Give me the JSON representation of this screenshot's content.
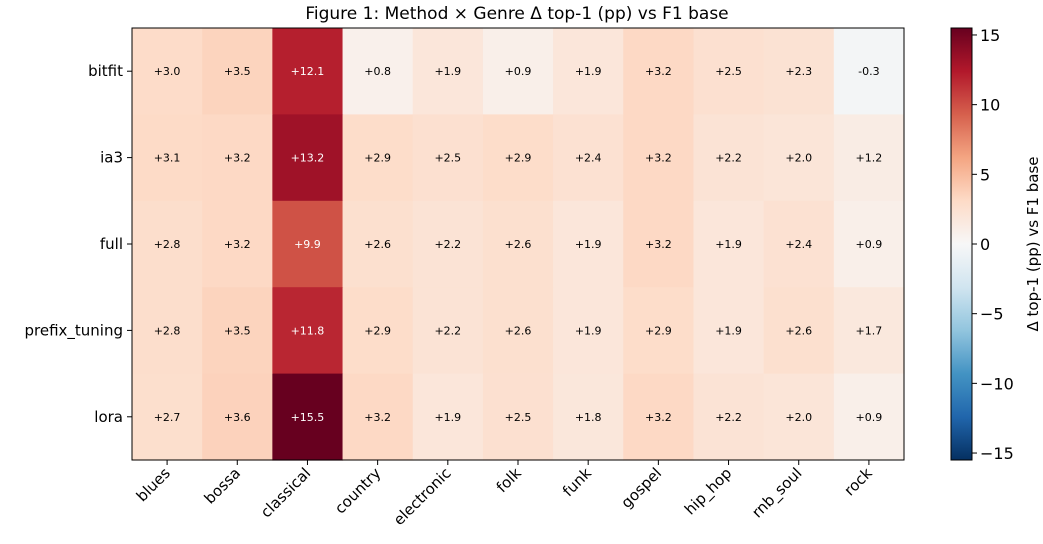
{
  "chart_data": {
    "type": "heatmap",
    "title": "Figure 1: Method × Genre Δ top-1 (pp) vs F1 base",
    "rows": [
      "bitfit",
      "ia3",
      "full",
      "prefix_tuning",
      "lora"
    ],
    "columns": [
      "blues",
      "bossa",
      "classical",
      "country",
      "electronic",
      "folk",
      "funk",
      "gospel",
      "hip_hop",
      "rnb_soul",
      "rock"
    ],
    "values": [
      [
        3.0,
        3.5,
        12.1,
        0.8,
        1.9,
        0.9,
        1.9,
        3.2,
        2.5,
        2.3,
        -0.3
      ],
      [
        3.1,
        3.2,
        13.2,
        2.9,
        2.5,
        2.9,
        2.4,
        3.2,
        2.2,
        2.0,
        1.2
      ],
      [
        2.8,
        3.2,
        9.9,
        2.6,
        2.2,
        2.6,
        1.9,
        3.2,
        1.9,
        2.4,
        0.9
      ],
      [
        2.8,
        3.5,
        11.8,
        2.9,
        2.2,
        2.6,
        1.9,
        2.9,
        1.9,
        2.6,
        1.7
      ],
      [
        2.7,
        3.6,
        15.5,
        3.2,
        1.9,
        2.5,
        1.8,
        3.2,
        2.2,
        2.0,
        0.9
      ]
    ],
    "cell_labels": [
      [
        "+3.0",
        "+3.5",
        "+12.1",
        "+0.8",
        "+1.9",
        "+0.9",
        "+1.9",
        "+3.2",
        "+2.5",
        "+2.3",
        "-0.3"
      ],
      [
        "+3.1",
        "+3.2",
        "+13.2",
        "+2.9",
        "+2.5",
        "+2.9",
        "+2.4",
        "+3.2",
        "+2.2",
        "+2.0",
        "+1.2"
      ],
      [
        "+2.8",
        "+3.2",
        "+9.9",
        "+2.6",
        "+2.2",
        "+2.6",
        "+1.9",
        "+3.2",
        "+1.9",
        "+2.4",
        "+0.9"
      ],
      [
        "+2.8",
        "+3.5",
        "+11.8",
        "+2.9",
        "+2.2",
        "+2.6",
        "+1.9",
        "+2.9",
        "+1.9",
        "+2.6",
        "+1.7"
      ],
      [
        "+2.7",
        "+3.6",
        "+15.5",
        "+3.2",
        "+1.9",
        "+2.5",
        "+1.8",
        "+3.2",
        "+2.2",
        "+2.0",
        "+0.9"
      ]
    ],
    "colormap": "RdBu_r",
    "vmin": -15.5,
    "vmax": 15.5,
    "colorbar": {
      "label": "Δ top-1 (pp) vs F1 base",
      "ticks": [
        15,
        10,
        5,
        0,
        -5,
        -10,
        -15
      ],
      "tick_labels": [
        "15",
        "10",
        "5",
        "0",
        "−5",
        "−10",
        "−15"
      ]
    }
  }
}
